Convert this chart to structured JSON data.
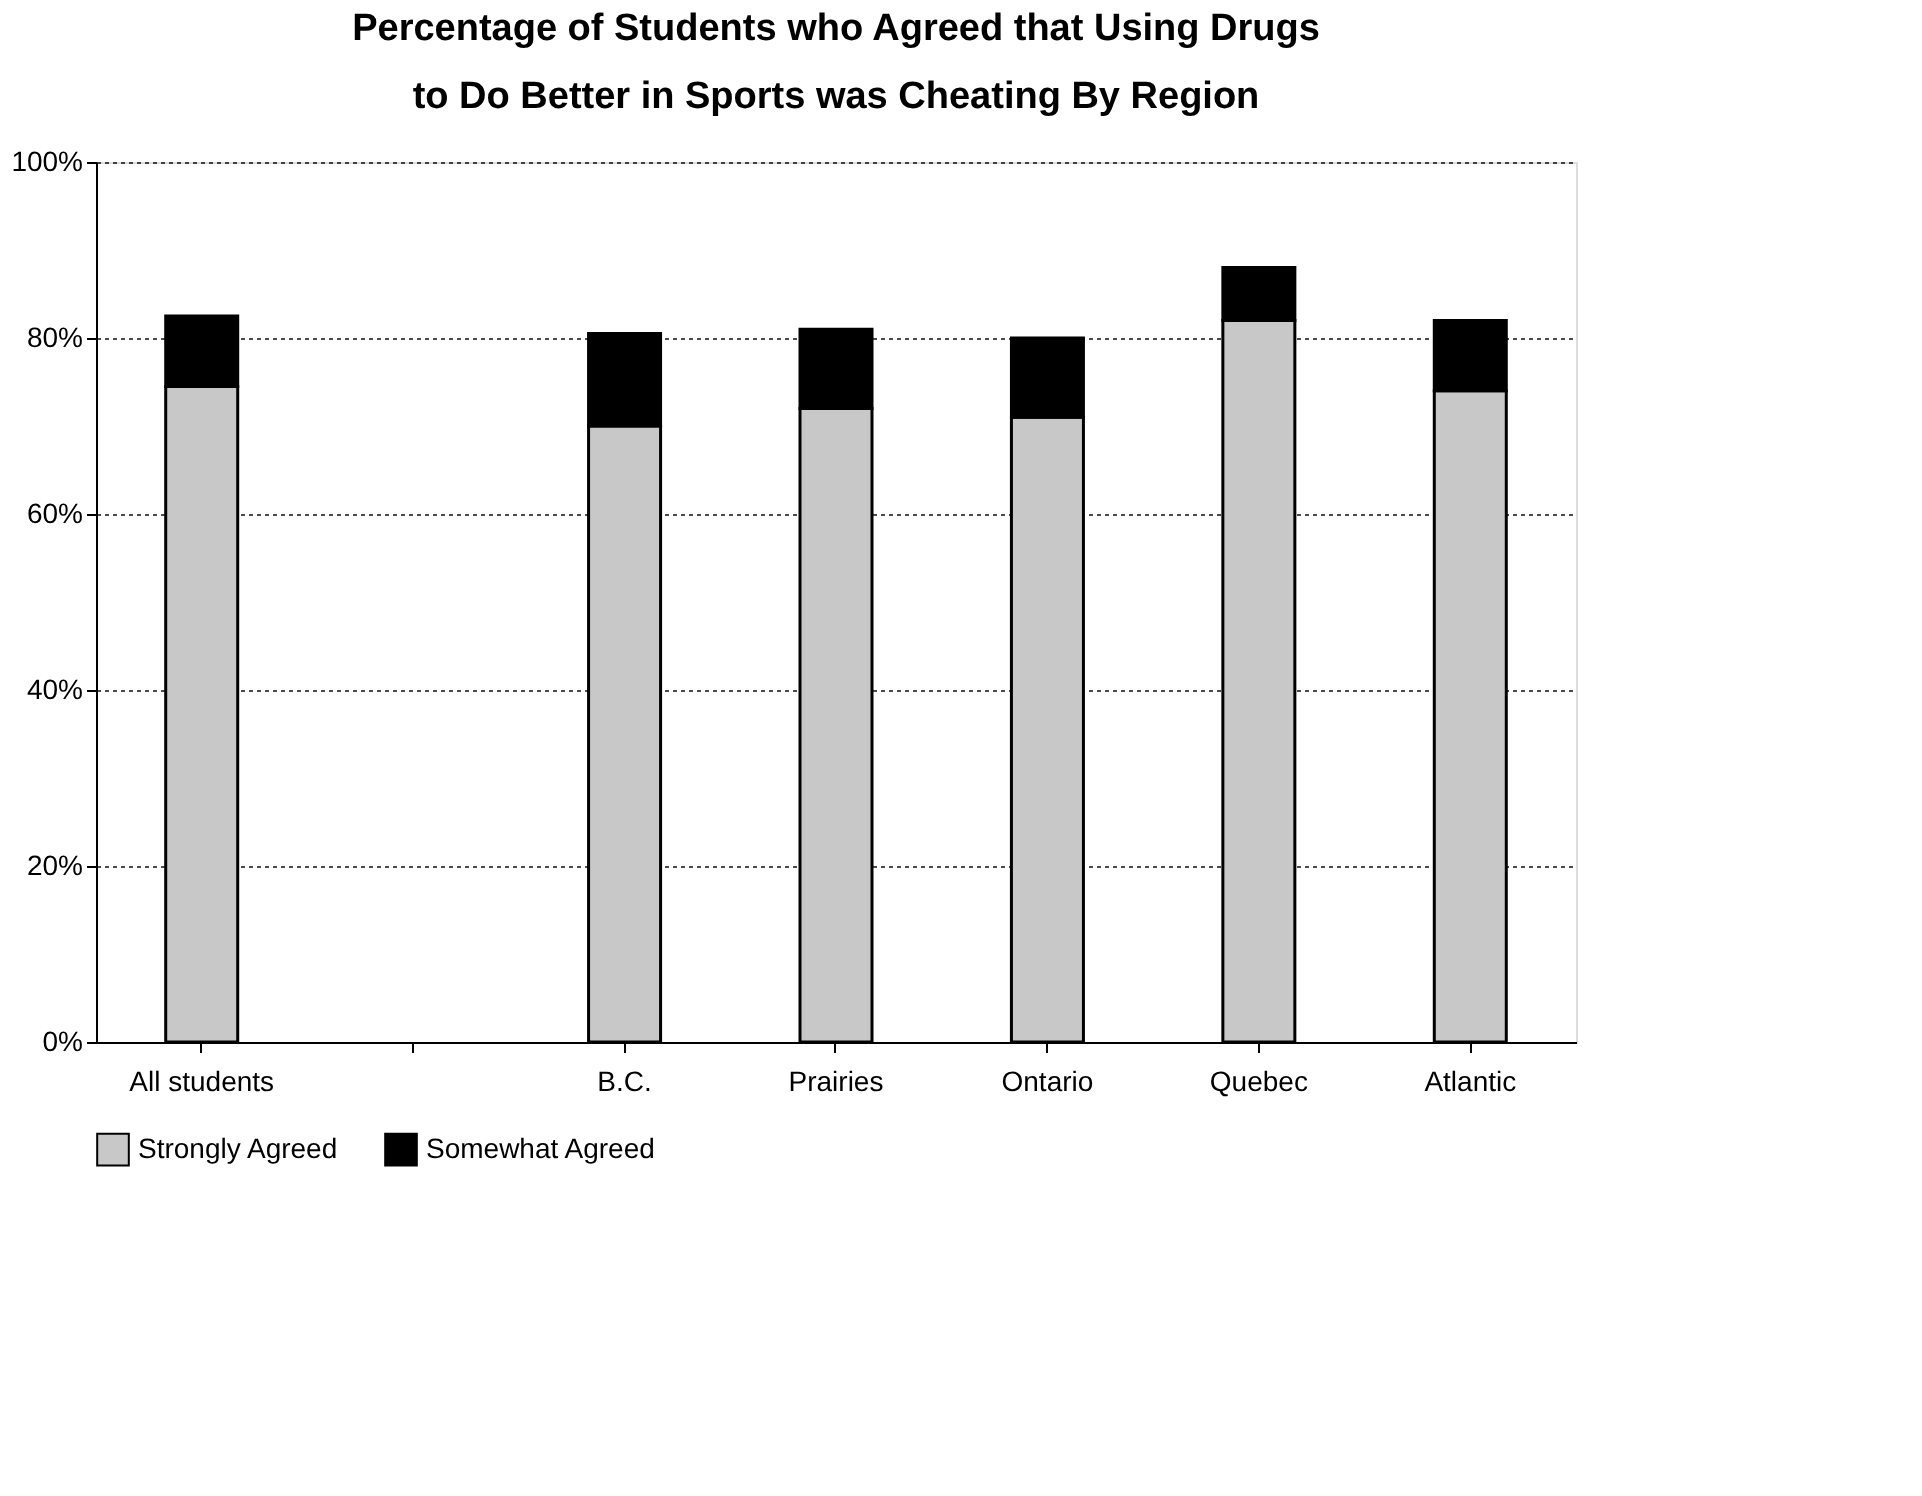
{
  "chart_data": {
    "type": "bar",
    "title": "Percentage of Students who Agreed that Using Drugs to Do Better in Sports was Cheating By Region",
    "categories": [
      "All students",
      null,
      "B.C.",
      "Prairies",
      "Ontario",
      "Quebec",
      "Atlantic"
    ],
    "series": [
      {
        "name": "Strongly Agreed",
        "color": "#c8c8c8",
        "values": [
          74.5,
          null,
          70,
          72,
          71,
          82,
          74
        ]
      },
      {
        "name": "Somewhat Agreed",
        "color": "#000000",
        "values": [
          8,
          null,
          10.5,
          9,
          9,
          6,
          8
        ]
      }
    ],
    "stacked": true,
    "ylim": [
      0,
      100
    ],
    "yticks": [
      {
        "value": 0,
        "label": "0%"
      },
      {
        "value": 20,
        "label": "20%"
      },
      {
        "value": 40,
        "label": "40%"
      },
      {
        "value": 60,
        "label": "60%"
      },
      {
        "value": 80,
        "label": "80%"
      },
      {
        "value": 100,
        "label": "100%"
      }
    ],
    "grid": "y",
    "legend": "bottom"
  }
}
